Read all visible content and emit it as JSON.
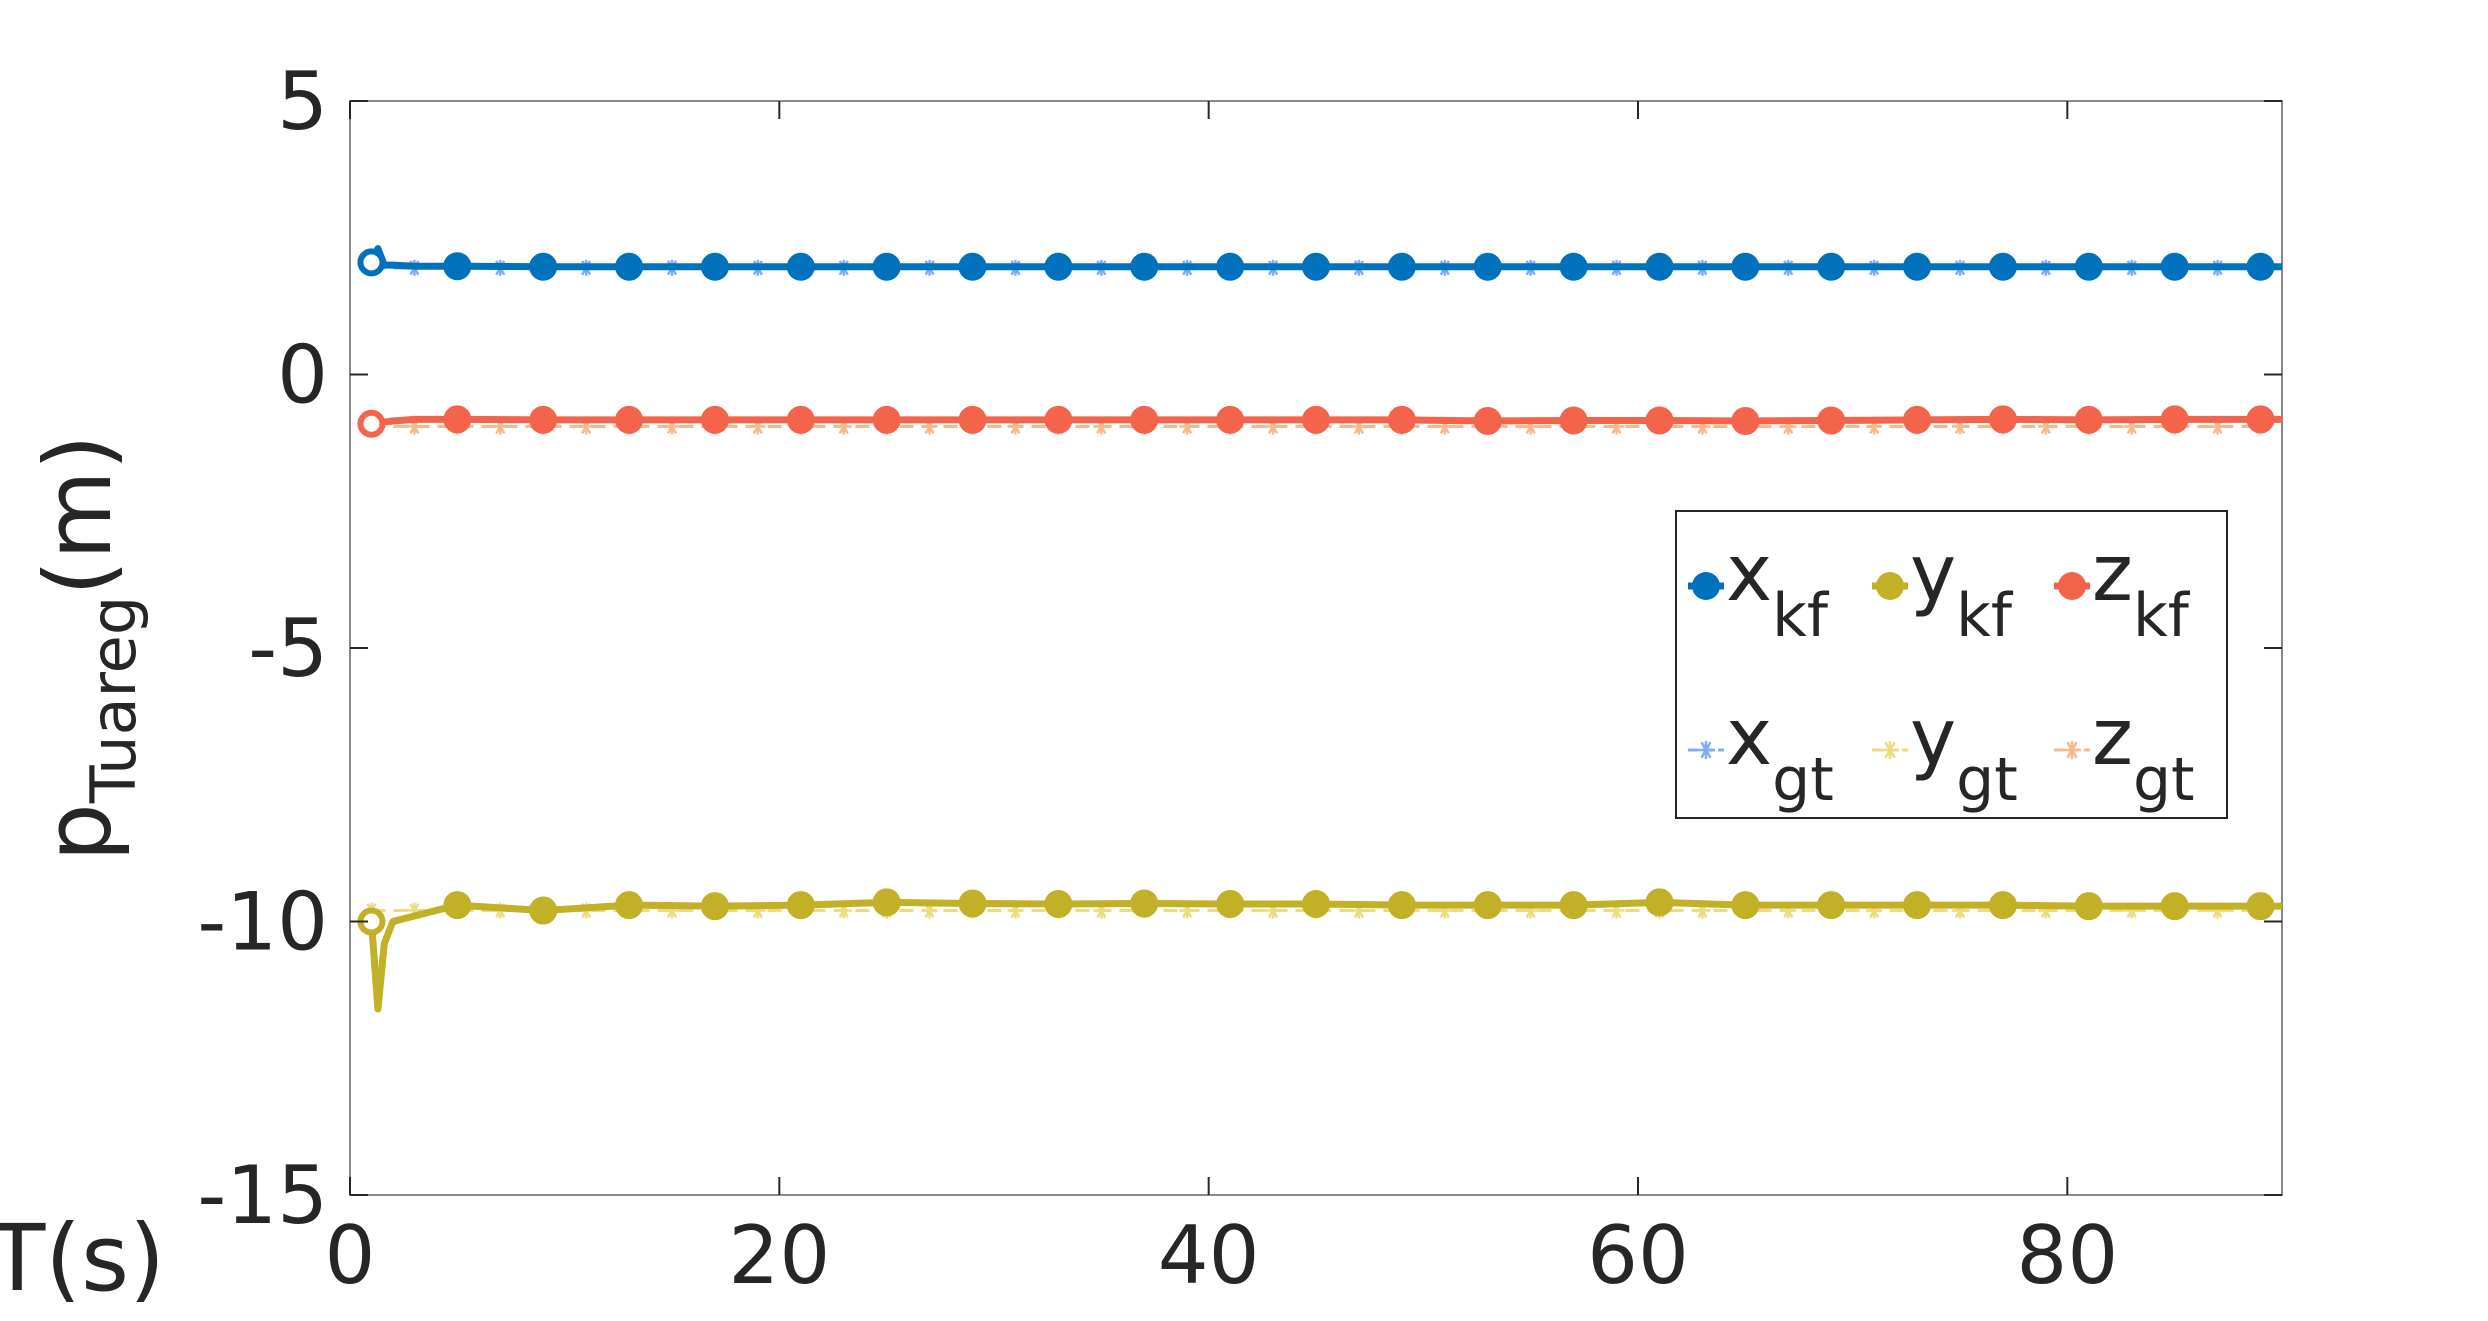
{
  "chart_data": {
    "type": "line",
    "title": "",
    "xlabel": "T(s)",
    "ylabel": {
      "base": "p",
      "sub": "Tuareg",
      "unit": "(m)"
    },
    "xlim": [
      0,
      90
    ],
    "ylim": [
      -15,
      5
    ],
    "xticks": [
      "0",
      "20",
      "40",
      "60",
      "80"
    ],
    "yticks": [
      "5",
      "0",
      "-5",
      "-10",
      "-15"
    ],
    "grid": false,
    "legend_position": "right",
    "series": [
      {
        "name": "x_kf",
        "label": "x",
        "sub": "kf",
        "color": "#0072BD",
        "style": "solid-circle",
        "x": [
          1,
          1.3,
          1.6,
          2,
          3,
          5,
          9,
          13,
          17,
          21,
          25,
          29,
          33,
          37,
          41,
          45,
          49,
          53,
          57,
          61,
          65,
          69,
          73,
          77,
          81,
          85,
          89,
          90
        ],
        "y": [
          2.05,
          2.3,
          2.0,
          2.0,
          1.98,
          1.98,
          1.97,
          1.97,
          1.97,
          1.97,
          1.97,
          1.97,
          1.97,
          1.97,
          1.97,
          1.97,
          1.97,
          1.97,
          1.97,
          1.97,
          1.97,
          1.97,
          1.97,
          1.97,
          1.97,
          1.97,
          1.97,
          1.97
        ]
      },
      {
        "name": "y_kf",
        "label": "y",
        "sub": "kf",
        "color": "#C2B026",
        "style": "solid-circle",
        "x": [
          1,
          1.3,
          1.6,
          2,
          3,
          5,
          7,
          9,
          13,
          17,
          21,
          25,
          29,
          33,
          37,
          41,
          45,
          49,
          53,
          57,
          61,
          65,
          69,
          73,
          77,
          81,
          85,
          89,
          90
        ],
        "y": [
          -10.0,
          -11.6,
          -10.4,
          -10.0,
          -9.9,
          -9.7,
          -9.75,
          -9.8,
          -9.7,
          -9.72,
          -9.7,
          -9.65,
          -9.67,
          -9.68,
          -9.67,
          -9.68,
          -9.68,
          -9.7,
          -9.7,
          -9.7,
          -9.65,
          -9.7,
          -9.7,
          -9.7,
          -9.7,
          -9.72,
          -9.72,
          -9.72,
          -9.72
        ]
      },
      {
        "name": "z_kf",
        "label": "z",
        "sub": "kf",
        "color": "#F3644A",
        "style": "solid-circle",
        "x": [
          1,
          2,
          3,
          5,
          9,
          13,
          17,
          21,
          25,
          29,
          33,
          37,
          41,
          45,
          49,
          53,
          57,
          61,
          65,
          69,
          73,
          77,
          81,
          85,
          89,
          90
        ],
        "y": [
          -0.9,
          -0.85,
          -0.82,
          -0.82,
          -0.83,
          -0.83,
          -0.83,
          -0.83,
          -0.83,
          -0.83,
          -0.83,
          -0.83,
          -0.83,
          -0.83,
          -0.83,
          -0.85,
          -0.84,
          -0.84,
          -0.85,
          -0.84,
          -0.83,
          -0.82,
          -0.83,
          -0.82,
          -0.82,
          -0.82
        ]
      },
      {
        "name": "x_gt",
        "label": "x",
        "sub": "gt",
        "color": "#7FAEEC",
        "style": "dashed-star",
        "x": [
          1,
          3,
          5,
          7,
          9,
          11,
          13,
          15,
          17,
          19,
          21,
          23,
          25,
          27,
          29,
          31,
          33,
          35,
          37,
          39,
          41,
          43,
          45,
          47,
          49,
          51,
          53,
          55,
          57,
          59,
          61,
          63,
          65,
          67,
          69,
          71,
          73,
          75,
          77,
          79,
          81,
          83,
          85,
          87,
          89
        ],
        "y": [
          1.95,
          1.95,
          1.95,
          1.95,
          1.95,
          1.95,
          1.95,
          1.95,
          1.95,
          1.95,
          1.95,
          1.95,
          1.95,
          1.95,
          1.95,
          1.95,
          1.95,
          1.95,
          1.95,
          1.95,
          1.95,
          1.95,
          1.95,
          1.95,
          1.95,
          1.95,
          1.95,
          1.95,
          1.95,
          1.95,
          1.95,
          1.95,
          1.95,
          1.95,
          1.95,
          1.95,
          1.95,
          1.95,
          1.95,
          1.95,
          1.95,
          1.95,
          1.95,
          1.95,
          1.95
        ]
      },
      {
        "name": "y_gt",
        "label": "y",
        "sub": "gt",
        "color": "#EDDB7F",
        "style": "dashed-star",
        "x": [
          1,
          3,
          5,
          7,
          9,
          11,
          13,
          15,
          17,
          19,
          21,
          23,
          25,
          27,
          29,
          31,
          33,
          35,
          37,
          39,
          41,
          43,
          45,
          47,
          49,
          51,
          53,
          55,
          57,
          59,
          61,
          63,
          65,
          67,
          69,
          71,
          73,
          75,
          77,
          79,
          81,
          83,
          85,
          87,
          89
        ],
        "y": [
          -9.8,
          -9.8,
          -9.8,
          -9.8,
          -9.8,
          -9.8,
          -9.8,
          -9.8,
          -9.8,
          -9.8,
          -9.8,
          -9.8,
          -9.8,
          -9.8,
          -9.8,
          -9.8,
          -9.8,
          -9.8,
          -9.8,
          -9.8,
          -9.8,
          -9.8,
          -9.8,
          -9.8,
          -9.8,
          -9.8,
          -9.8,
          -9.8,
          -9.8,
          -9.8,
          -9.8,
          -9.8,
          -9.8,
          -9.8,
          -9.8,
          -9.8,
          -9.8,
          -9.8,
          -9.8,
          -9.8,
          -9.8,
          -9.8,
          -9.8,
          -9.8,
          -9.8
        ]
      },
      {
        "name": "z_gt",
        "label": "z",
        "sub": "gt",
        "color": "#F7B88C",
        "style": "dashed-star",
        "x": [
          1,
          3,
          5,
          7,
          9,
          11,
          13,
          15,
          17,
          19,
          21,
          23,
          25,
          27,
          29,
          31,
          33,
          35,
          37,
          39,
          41,
          43,
          45,
          47,
          49,
          51,
          53,
          55,
          57,
          59,
          61,
          63,
          65,
          67,
          69,
          71,
          73,
          75,
          77,
          79,
          81,
          83,
          85,
          87,
          89
        ],
        "y": [
          -0.95,
          -0.95,
          -0.95,
          -0.95,
          -0.95,
          -0.95,
          -0.95,
          -0.95,
          -0.95,
          -0.95,
          -0.95,
          -0.95,
          -0.95,
          -0.95,
          -0.95,
          -0.95,
          -0.95,
          -0.95,
          -0.95,
          -0.95,
          -0.95,
          -0.95,
          -0.95,
          -0.95,
          -0.95,
          -0.95,
          -0.95,
          -0.95,
          -0.95,
          -0.95,
          -0.95,
          -0.95,
          -0.95,
          -0.95,
          -0.95,
          -0.95,
          -0.95,
          -0.95,
          -0.95,
          -0.95,
          -0.95,
          -0.95,
          -0.95,
          -0.95,
          -0.95
        ]
      }
    ]
  }
}
